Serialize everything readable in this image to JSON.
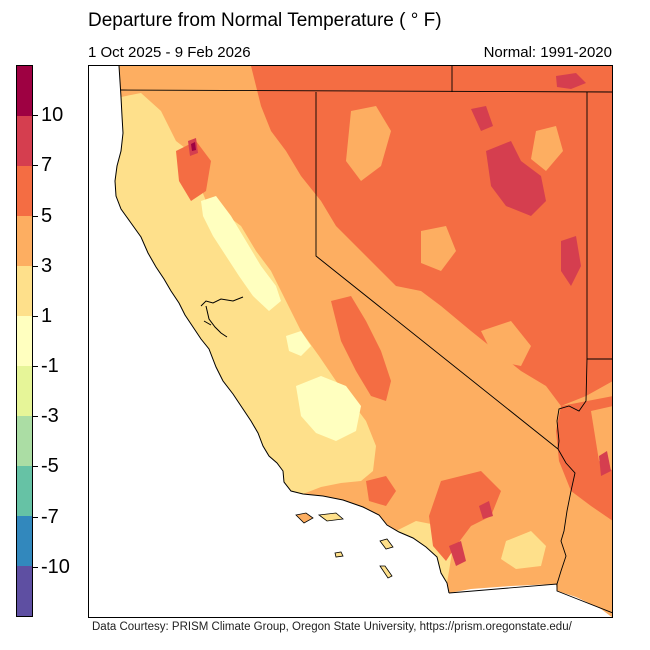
{
  "header": {
    "title": "Departure from Normal Temperature ( ° F)",
    "date_range": "1 Oct 2025 - 9 Feb 2026",
    "normal_period": "Normal: 1991-2020"
  },
  "colorbar": {
    "unit": "°F",
    "segments": [
      {
        "range": "> 10",
        "color": "#9e0142"
      },
      {
        "range": "7 to 10",
        "color": "#d53e4f"
      },
      {
        "range": "5 to 7",
        "color": "#f46d43"
      },
      {
        "range": "3 to 5",
        "color": "#fdae61"
      },
      {
        "range": "1 to 3",
        "color": "#fee08b"
      },
      {
        "range": "-1 to 1",
        "color": "#ffffbf"
      },
      {
        "range": "-3 to -1",
        "color": "#e6f598"
      },
      {
        "range": "-5 to -3",
        "color": "#abdda4"
      },
      {
        "range": "-7 to -5",
        "color": "#66c2a5"
      },
      {
        "range": "-10 to -7",
        "color": "#3288bd"
      },
      {
        "range": "< -10",
        "color": "#5e4fa2"
      }
    ],
    "ticks": [
      "10",
      "7",
      "5",
      "3",
      "1",
      "-1",
      "-3",
      "-5",
      "-7",
      "-10"
    ]
  },
  "map": {
    "region": "California, Nevada and surrounding areas",
    "states_shown": [
      "California",
      "Nevada",
      "Oregon (south edge)",
      "Arizona (west edge)",
      "Utah (west edge)",
      "Idaho (south edge)"
    ],
    "dominant_anomaly": "3 to 7 °F above normal",
    "background_color": "#ffffff",
    "border_color": "#000000"
  },
  "chart_data": {
    "type": "heatmap",
    "title": "Departure from Normal Temperature ( ° F)",
    "subtitle_left": "1 Oct 2025 - 9 Feb 2026",
    "subtitle_right": "Normal: 1991-2020",
    "legend": {
      "position": "left",
      "orientation": "vertical",
      "tick_labels": [
        "10",
        "7",
        "5",
        "3",
        "1",
        "-1",
        "-3",
        "-5",
        "-7",
        "-10"
      ],
      "bins": [
        "> 10",
        "7 to 10",
        "5 to 7",
        "3 to 5",
        "1 to 3",
        "-1 to 1",
        "-3 to -1",
        "-5 to -3",
        "-7 to -5",
        "-10 to -7",
        "< -10"
      ],
      "colors": [
        "#9e0142",
        "#d53e4f",
        "#f46d43",
        "#fdae61",
        "#fee08b",
        "#ffffbf",
        "#e6f598",
        "#abdda4",
        "#66c2a5",
        "#3288bd",
        "#5e4fa2"
      ]
    },
    "regional_summary": [
      {
        "region": "Nevada (most)",
        "anomaly_bin": "5 to 7",
        "notes": "patches of 7 to 10 in north-central and east"
      },
      {
        "region": "Southern Oregon / Idaho edge",
        "anomaly_bin": "5 to 7"
      },
      {
        "region": "Sierra Nevada / eastern CA",
        "anomaly_bin": "3 to 7"
      },
      {
        "region": "Central Valley & coast ranges",
        "anomaly_bin": "1 to 3",
        "notes": "patches of -1 to 1 in Sacramento/San Joaquin valley"
      },
      {
        "region": "Southern CA deserts",
        "anomaly_bin": "3 to 7",
        "notes": "local 7 to 10 spots"
      },
      {
        "region": "Western Arizona",
        "anomaly_bin": "3 to 7"
      }
    ]
  },
  "footer": {
    "credit": "Data Courtesy: PRISM Climate Group, Oregon State University, https://prism.oregonstate.edu/"
  }
}
